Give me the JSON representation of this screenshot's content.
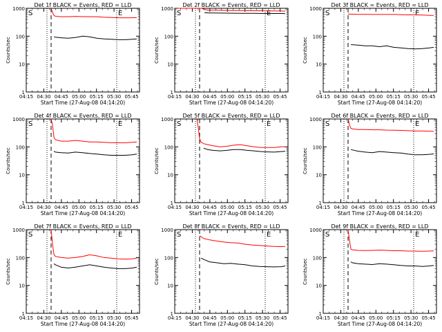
{
  "panels_ref": "det_panels",
  "common": {
    "ylabel": "Counts/sec",
    "xlabel": "Start Time (27-Aug-08 04:14:20)",
    "yticks": [
      "1",
      "10",
      "100",
      "1000"
    ],
    "xticks": [
      "04:15",
      "04:30",
      "04:45",
      "05:00",
      "05:15",
      "05:30",
      "05:45"
    ],
    "marker_s": "S",
    "marker_e": "E",
    "colors": {
      "events": "#000000",
      "lld": "#ff0000",
      "axis": "#000000"
    }
  },
  "chart_data": [
    {
      "type": "line",
      "title": "Det 1f BLACK = Events, RED = LLD",
      "xlabel": "Start Time (27-Aug-08 04:14:20)",
      "ylabel": "Counts/sec",
      "ylim": [
        1,
        1000
      ],
      "yscale": "log",
      "x": [
        33,
        34,
        35,
        36,
        40,
        45,
        50,
        55,
        60,
        65,
        70,
        75,
        80,
        85,
        90,
        93
      ],
      "series": [
        {
          "name": "LLD",
          "color": "#ff0000",
          "values": [
            1000,
            700,
            560,
            520,
            500,
            500,
            510,
            505,
            500,
            495,
            480,
            470,
            460,
            455,
            460,
            465
          ]
        },
        {
          "name": "Events",
          "color": "#000000",
          "values": [
            null,
            null,
            95,
            92,
            88,
            85,
            90,
            100,
            95,
            85,
            80,
            78,
            75,
            75,
            78,
            80
          ]
        }
      ],
      "s_x": 13,
      "e_x": 82,
      "dashed_x": 32
    },
    {
      "type": "line",
      "title": "Det 2f BLACK = Events, RED = LLD",
      "xlabel": "Start Time (27-Aug-08 04:14:20)",
      "ylabel": "Counts/sec",
      "ylim": [
        1,
        1000
      ],
      "yscale": "log",
      "x": [
        13,
        16,
        19,
        22,
        25,
        28,
        31,
        33,
        36,
        40,
        50,
        60,
        70,
        80,
        90,
        93
      ],
      "series": [
        {
          "name": "LLD",
          "color": "#ff0000",
          "values": [
            1000,
            1000,
            1000,
            1000,
            1000,
            1000,
            1000,
            900,
            850,
            850,
            840,
            830,
            820,
            810,
            800,
            790
          ]
        },
        {
          "name": "Events",
          "color": "#000000",
          "values": [
            null,
            null,
            null,
            null,
            null,
            null,
            null,
            700,
            680,
            680,
            670,
            660,
            660,
            650,
            650,
            640
          ]
        }
      ],
      "s_x": 13,
      "e_x": 82,
      "dashed_x": 26
    },
    {
      "type": "line",
      "title": "Det 3f BLACK = Events, RED = LLD",
      "xlabel": "Start Time (27-Aug-08 04:14:20)",
      "ylabel": "Counts/sec",
      "ylim": [
        1,
        1000
      ],
      "yscale": "log",
      "x": [
        33,
        35,
        40,
        45,
        50,
        55,
        60,
        65,
        70,
        75,
        80,
        85,
        90,
        93
      ],
      "series": [
        {
          "name": "LLD",
          "color": "#ff0000",
          "values": [
            620,
            620,
            610,
            610,
            600,
            600,
            600,
            600,
            590,
            580,
            580,
            570,
            560,
            560
          ]
        },
        {
          "name": "Events",
          "color": "#000000",
          "values": [
            null,
            50,
            48,
            45,
            45,
            42,
            45,
            40,
            38,
            36,
            35,
            36,
            38,
            40
          ]
        }
      ],
      "s_x": 13,
      "e_x": 82,
      "dashed_x": null
    },
    {
      "type": "line",
      "title": "Det 4f BLACK = Events, RED = LLD",
      "xlabel": "Start Time (27-Aug-08 04:14:20)",
      "ylabel": "Counts/sec",
      "ylim": [
        1,
        1000
      ],
      "yscale": "log",
      "x": [
        33,
        34,
        35,
        36,
        40,
        45,
        50,
        55,
        60,
        65,
        70,
        75,
        80,
        85,
        90,
        93
      ],
      "series": [
        {
          "name": "LLD",
          "color": "#ff0000",
          "values": [
            1000,
            600,
            220,
            180,
            160,
            160,
            170,
            160,
            150,
            150,
            145,
            140,
            140,
            140,
            145,
            150
          ]
        },
        {
          "name": "Events",
          "color": "#000000",
          "values": [
            null,
            null,
            70,
            65,
            62,
            60,
            65,
            62,
            58,
            55,
            52,
            50,
            50,
            50,
            52,
            55
          ]
        }
      ],
      "s_x": 13,
      "e_x": 82,
      "dashed_x": 32
    },
    {
      "type": "line",
      "title": "Det 5f BLACK = Events, RED = LLD",
      "xlabel": "Start Time (27-Aug-08 04:14:20)",
      "ylabel": "Counts/sec",
      "ylim": [
        1,
        1000
      ],
      "yscale": "log",
      "x": [
        28,
        29,
        30,
        31,
        33,
        36,
        40,
        45,
        50,
        55,
        60,
        65,
        70,
        75,
        80,
        85,
        90,
        93
      ],
      "series": [
        {
          "name": "LLD",
          "color": "#ff0000",
          "values": [
            1000,
            500,
            200,
            150,
            130,
            120,
            110,
            100,
            105,
            115,
            120,
            110,
            100,
            95,
            95,
            95,
            100,
            100
          ]
        },
        {
          "name": "Events",
          "color": "#000000",
          "values": [
            null,
            null,
            null,
            null,
            90,
            80,
            75,
            72,
            75,
            80,
            80,
            75,
            72,
            68,
            66,
            65,
            68,
            70
          ]
        }
      ],
      "s_x": 13,
      "e_x": 82,
      "dashed_x": 26
    },
    {
      "type": "line",
      "title": "Det 6f BLACK = Events, RED = LLD",
      "xlabel": "Start Time (27-Aug-08 04:14:20)",
      "ylabel": "Counts/sec",
      "ylim": [
        1,
        1000
      ],
      "yscale": "log",
      "x": [
        33,
        34,
        35,
        36,
        40,
        45,
        50,
        55,
        60,
        65,
        70,
        75,
        80,
        85,
        90,
        93
      ],
      "series": [
        {
          "name": "LLD",
          "color": "#ff0000",
          "values": [
            1000,
            600,
            460,
            440,
            420,
            420,
            410,
            410,
            400,
            395,
            390,
            380,
            370,
            370,
            365,
            360
          ]
        },
        {
          "name": "Events",
          "color": "#000000",
          "values": [
            null,
            null,
            80,
            78,
            70,
            65,
            62,
            68,
            65,
            62,
            60,
            55,
            52,
            52,
            54,
            56
          ]
        }
      ],
      "s_x": 13,
      "e_x": 82,
      "dashed_x": null
    },
    {
      "type": "line",
      "title": "Det 7f BLACK = Events, RED = LLD",
      "xlabel": "Start Time (27-Aug-08 04:14:20)",
      "ylabel": "Counts/sec",
      "ylim": [
        1,
        1000
      ],
      "yscale": "log",
      "x": [
        33,
        34,
        35,
        36,
        40,
        45,
        50,
        55,
        60,
        65,
        70,
        75,
        80,
        85,
        90,
        93
      ],
      "series": [
        {
          "name": "LLD",
          "color": "#ff0000",
          "values": [
            1000,
            300,
            130,
            110,
            100,
            95,
            100,
            110,
            125,
            115,
            100,
            95,
            90,
            88,
            90,
            95
          ]
        },
        {
          "name": "Events",
          "color": "#000000",
          "values": [
            null,
            null,
            60,
            55,
            45,
            42,
            45,
            50,
            55,
            50,
            45,
            42,
            40,
            40,
            42,
            45
          ]
        }
      ],
      "s_x": 13,
      "e_x": 82,
      "dashed_x": 32
    },
    {
      "type": "line",
      "title": "Det 8f BLACK = Events, RED = LLD",
      "xlabel": "Start Time (27-Aug-08 04:14:20)",
      "ylabel": "Counts/sec",
      "ylim": [
        1,
        1000
      ],
      "yscale": "log",
      "x": [
        33,
        34,
        35,
        36,
        40,
        45,
        50,
        55,
        60,
        65,
        70,
        75,
        80,
        85,
        90,
        93
      ],
      "series": [
        {
          "name": "LLD",
          "color": "#ff0000",
          "values": [
            600,
            560,
            520,
            480,
            430,
            390,
            360,
            340,
            330,
            300,
            280,
            270,
            260,
            250,
            245,
            250
          ]
        },
        {
          "name": "Events",
          "color": "#000000",
          "values": [
            null,
            95,
            90,
            85,
            70,
            65,
            60,
            62,
            58,
            55,
            50,
            48,
            47,
            46,
            47,
            50
          ]
        }
      ],
      "s_x": 13,
      "e_x": 82,
      "dashed_x": 26
    },
    {
      "type": "line",
      "title": "Det 9f BLACK = Events, RED = LLD",
      "xlabel": "Start Time (27-Aug-08 04:14:20)",
      "ylabel": "Counts/sec",
      "ylim": [
        1,
        1000
      ],
      "yscale": "log",
      "x": [
        33,
        34,
        35,
        36,
        40,
        45,
        50,
        55,
        60,
        65,
        70,
        75,
        80,
        85,
        90,
        93
      ],
      "series": [
        {
          "name": "LLD",
          "color": "#ff0000",
          "values": [
            1000,
            400,
            200,
            190,
            180,
            178,
            180,
            185,
            180,
            175,
            175,
            170,
            170,
            168,
            170,
            172
          ]
        },
        {
          "name": "Events",
          "color": "#000000",
          "values": [
            null,
            null,
            70,
            65,
            60,
            58,
            56,
            60,
            58,
            55,
            52,
            50,
            50,
            48,
            50,
            52
          ]
        }
      ],
      "s_x": 13,
      "e_x": 82,
      "dashed_x": null
    }
  ]
}
